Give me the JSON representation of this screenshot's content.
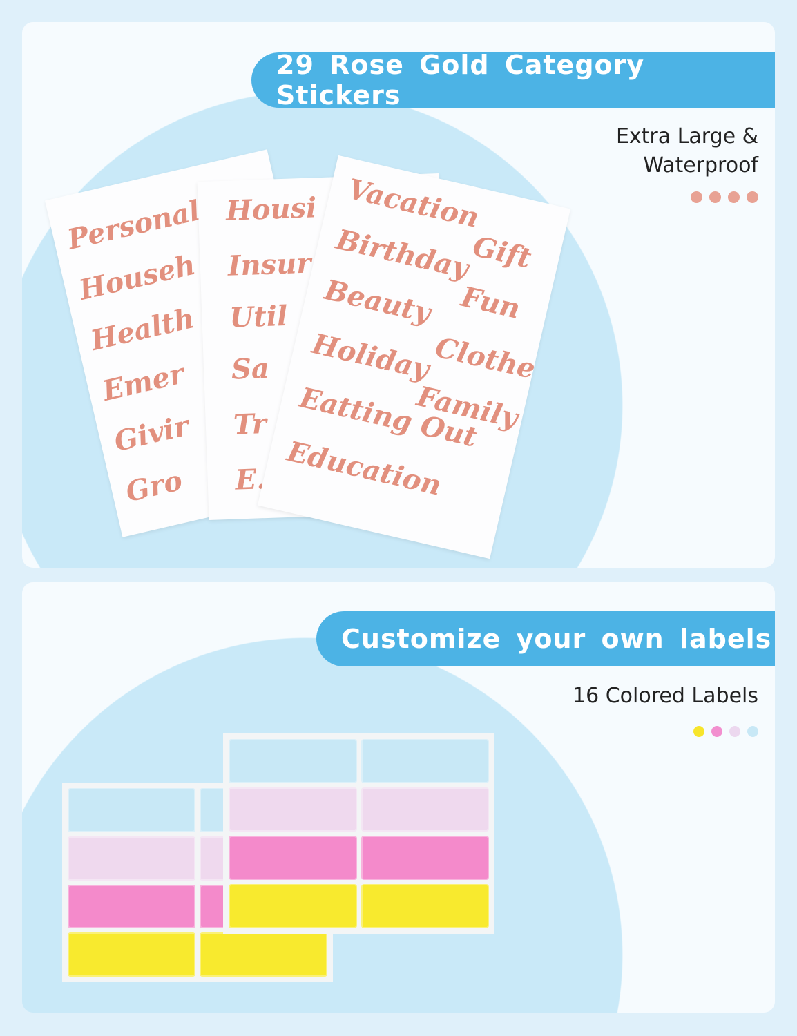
{
  "section1": {
    "banner": "29 Rose Gold Category Stickers",
    "subtitle_line1": "Extra Large &",
    "subtitle_line2": "Waterproof",
    "dot_colors": [
      "#e8a294",
      "#e8a294",
      "#e8a294",
      "#e8a294"
    ],
    "sheet_left": [
      "Personal",
      "Househ",
      "Health",
      "Emer",
      "Givir",
      "Gro"
    ],
    "sheet_middle": [
      "Housi",
      "Insur",
      "Util",
      "Sa",
      "Tr",
      "E.."
    ],
    "sheet_right": [
      "Vacation",
      "Gift",
      "Birthday",
      "Fun",
      "Beauty",
      "Clothes",
      "Holiday",
      "Family",
      "Eatting Out",
      "Education"
    ]
  },
  "section2": {
    "banner": "Customize your own labels",
    "subtitle": "16 Colored Labels",
    "dot_colors": [
      "#f7e52c",
      "#f28fcf",
      "#ecd8ef",
      "#c8e8f6"
    ],
    "label_colors": [
      "#c8e8f6",
      "#efd9ee",
      "#f48acb",
      "#f8ea2e"
    ]
  },
  "colors": {
    "banner": "#4cb3e5",
    "rose_gold": "#e2907e",
    "circle": "#c9e9f8"
  }
}
